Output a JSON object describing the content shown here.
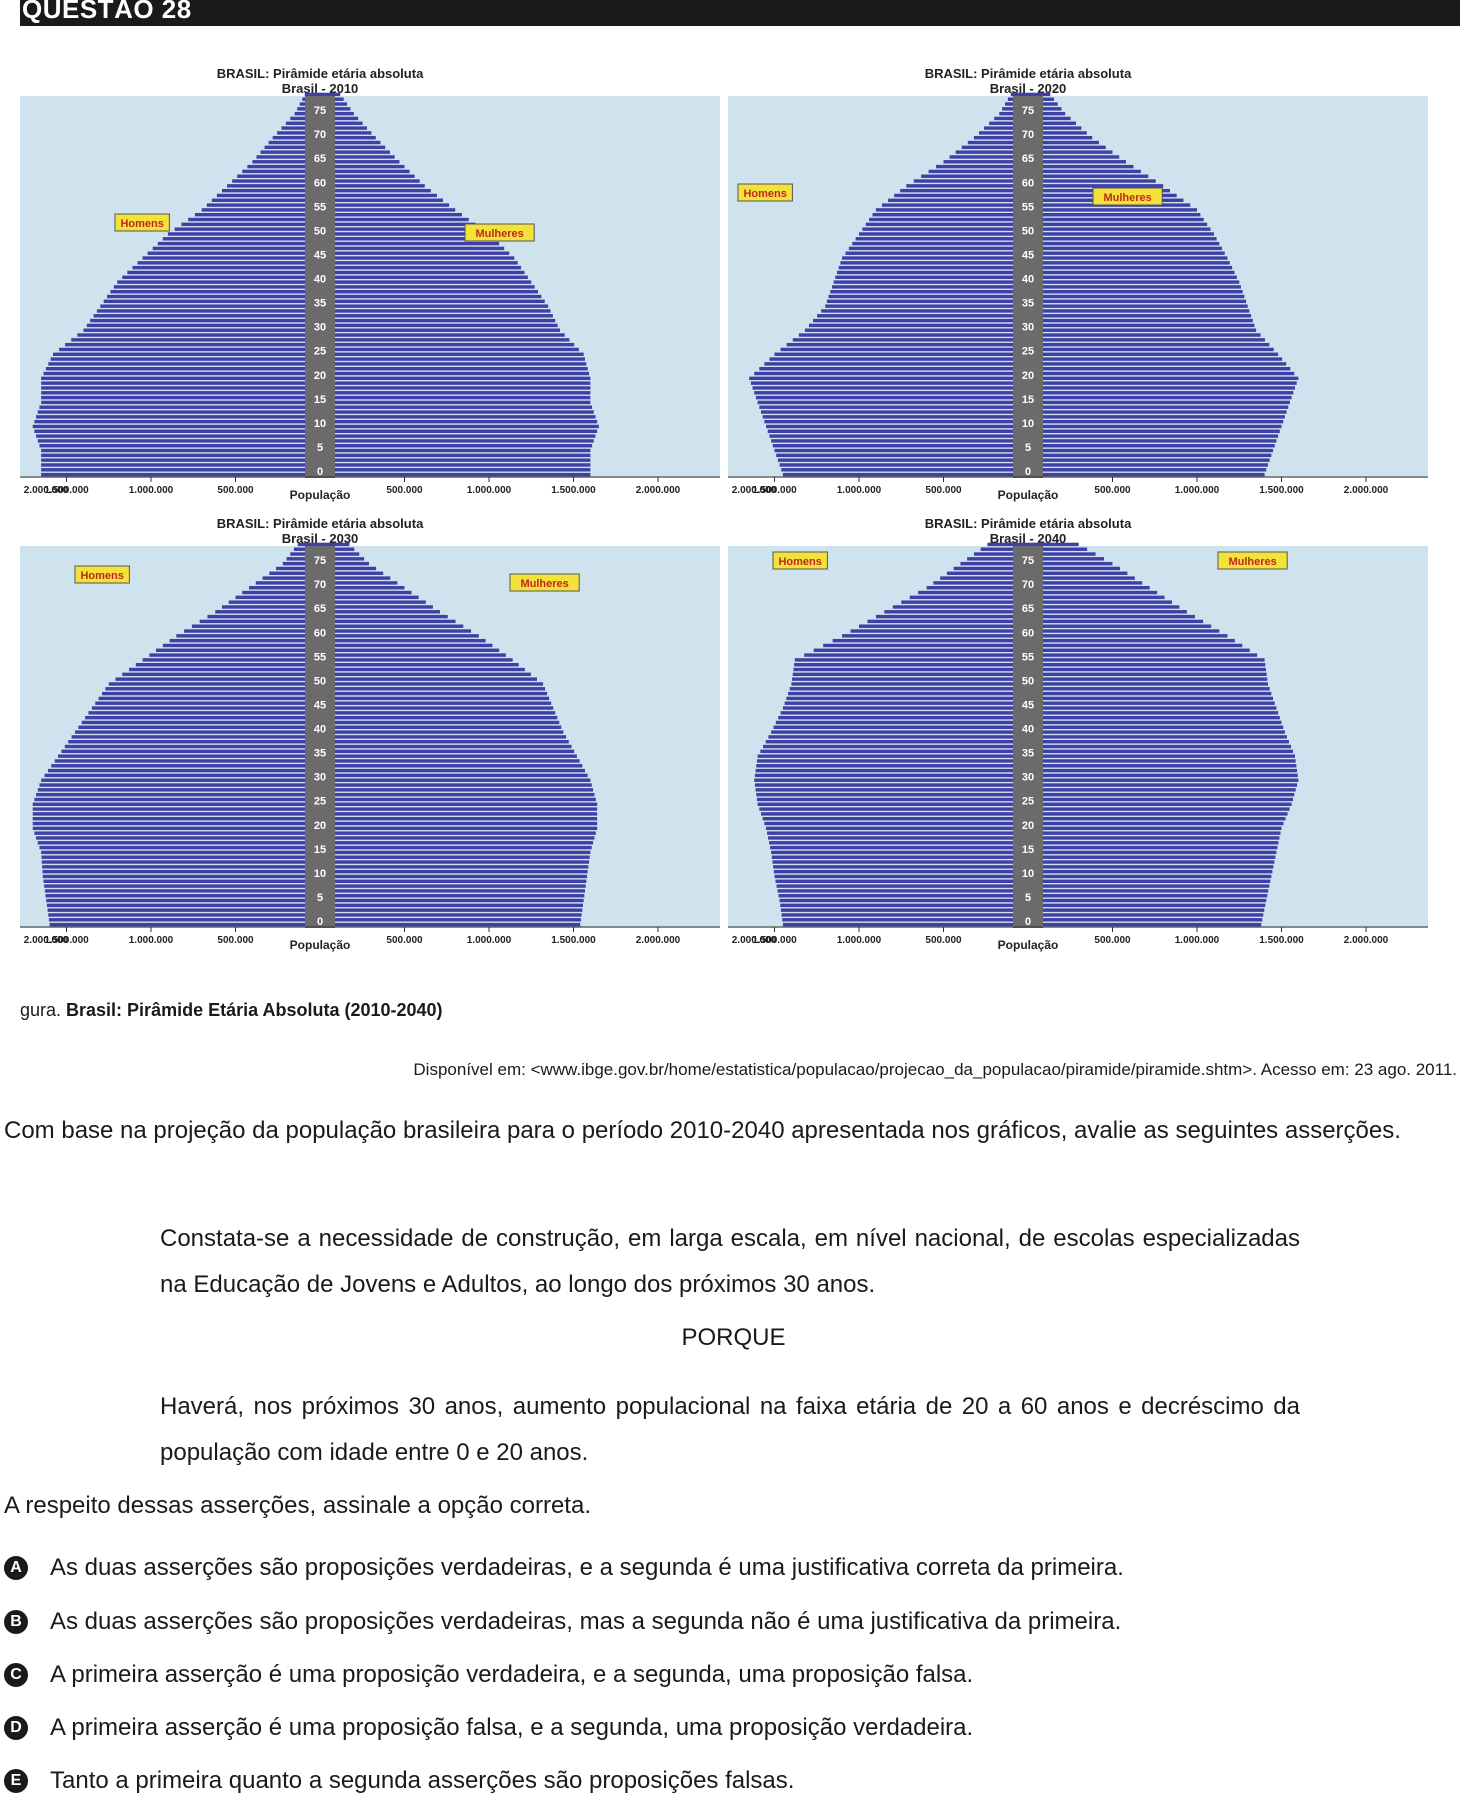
{
  "header": {
    "question": "QUESTÃO 28"
  },
  "chart_data": [
    {
      "type": "bar",
      "title": "BRASIL: Pirâmide etária absoluta",
      "subtitle": "Brasil - 2010",
      "xlabel": "População",
      "y_ticks": [
        "0",
        "5",
        "10",
        "15",
        "20",
        "25",
        "30",
        "35",
        "40",
        "45",
        "50",
        "55",
        "60",
        "65",
        "70",
        "75"
      ],
      "x_ticks": [
        "2.000.000",
        "1.500.000",
        "1.000.000",
        "500.000",
        "500.000",
        "1.000.000",
        "1.500.000",
        "2.000.000"
      ],
      "xlim": [
        -2000000,
        2000000
      ],
      "ylim": [
        0,
        80
      ],
      "legend": [
        "Homens",
        "Mulheres"
      ],
      "ages": [
        0,
        5,
        10,
        15,
        20,
        25,
        30,
        35,
        40,
        45,
        50,
        55,
        60,
        65,
        70,
        75
      ],
      "series": [
        {
          "name": "Homens",
          "values": [
            1650000,
            1650000,
            1700000,
            1650000,
            1650000,
            1580000,
            1400000,
            1300000,
            1200000,
            1050000,
            900000,
            700000,
            550000,
            400000,
            280000,
            150000
          ]
        },
        {
          "name": "Mulheres",
          "values": [
            1600000,
            1600000,
            1650000,
            1600000,
            1600000,
            1560000,
            1420000,
            1350000,
            1250000,
            1150000,
            1000000,
            800000,
            620000,
            470000,
            330000,
            200000
          ]
        }
      ]
    },
    {
      "type": "bar",
      "title": "BRASIL: Pirâmide etária absoluta",
      "subtitle": "Brasil - 2020",
      "xlabel": "População",
      "y_ticks": [
        "0",
        "5",
        "10",
        "15",
        "20",
        "25",
        "30",
        "35",
        "40",
        "45",
        "50",
        "55",
        "60",
        "65",
        "70",
        "75"
      ],
      "x_ticks": [
        "2.000.000",
        "1.500.000",
        "1.000.000",
        "500.000",
        "500.000",
        "1.000.000",
        "1.500.000",
        "2.000.000"
      ],
      "xlim": [
        -2000000,
        2000000
      ],
      "ylim": [
        0,
        80
      ],
      "legend": [
        "Homens",
        "Mulheres"
      ],
      "ages": [
        0,
        5,
        10,
        15,
        20,
        25,
        30,
        35,
        40,
        45,
        50,
        55,
        60,
        65,
        70,
        75
      ],
      "series": [
        {
          "name": "Homens",
          "values": [
            1450000,
            1500000,
            1550000,
            1600000,
            1650000,
            1500000,
            1320000,
            1200000,
            1150000,
            1100000,
            1000000,
            900000,
            720000,
            500000,
            320000,
            170000
          ]
        },
        {
          "name": "Mulheres",
          "values": [
            1400000,
            1450000,
            1500000,
            1550000,
            1600000,
            1480000,
            1350000,
            1300000,
            1250000,
            1180000,
            1100000,
            1000000,
            800000,
            580000,
            380000,
            220000
          ]
        }
      ]
    },
    {
      "type": "bar",
      "title": "BRASIL: Pirâmide etária absoluta",
      "subtitle": "Brasil - 2030",
      "xlabel": "População",
      "y_ticks": [
        "0",
        "5",
        "10",
        "15",
        "20",
        "25",
        "30",
        "35",
        "40",
        "45",
        "50",
        "55",
        "60",
        "65",
        "70",
        "75"
      ],
      "x_ticks": [
        "2.000.000",
        "1.500.000",
        "1.000.000",
        "500.000",
        "500.000",
        "1.000.000",
        "1.500.000",
        "2.000.000"
      ],
      "xlim": [
        -2000000,
        2000000
      ],
      "ylim": [
        0,
        80
      ],
      "legend": [
        "Homens",
        "Mulheres"
      ],
      "ages": [
        0,
        5,
        10,
        15,
        20,
        25,
        30,
        35,
        40,
        45,
        50,
        55,
        60,
        65,
        70,
        75
      ],
      "series": [
        {
          "name": "Homens",
          "values": [
            1600000,
            1620000,
            1640000,
            1650000,
            1700000,
            1700000,
            1650000,
            1550000,
            1450000,
            1350000,
            1250000,
            1050000,
            850000,
            620000,
            420000,
            220000
          ]
        },
        {
          "name": "Mulheres",
          "values": [
            1540000,
            1560000,
            1580000,
            1600000,
            1640000,
            1640000,
            1600000,
            1520000,
            1440000,
            1380000,
            1320000,
            1140000,
            940000,
            710000,
            500000,
            290000
          ]
        }
      ]
    },
    {
      "type": "bar",
      "title": "BRASIL: Pirâmide etária absoluta",
      "subtitle": "Brasil - 2040",
      "xlabel": "População",
      "y_ticks": [
        "0",
        "5",
        "10",
        "15",
        "20",
        "25",
        "30",
        "35",
        "40",
        "45",
        "50",
        "55",
        "60",
        "65",
        "70",
        "75"
      ],
      "x_ticks": [
        "2.000.000",
        "1.500.000",
        "1.000.000",
        "500.000",
        "500.000",
        "1.000.000",
        "1.500.000",
        "2.000.000"
      ],
      "xlim": [
        -2000000,
        2000000
      ],
      "ylim": [
        0,
        80
      ],
      "legend": [
        "Homens",
        "Mulheres"
      ],
      "ages": [
        0,
        5,
        10,
        15,
        20,
        25,
        30,
        35,
        40,
        45,
        50,
        55,
        60,
        65,
        70,
        75
      ],
      "series": [
        {
          "name": "Homens",
          "values": [
            1450000,
            1470000,
            1500000,
            1520000,
            1550000,
            1600000,
            1620000,
            1600000,
            1520000,
            1450000,
            1400000,
            1380000,
            1100000,
            850000,
            600000,
            400000
          ]
        },
        {
          "name": "Mulheres",
          "values": [
            1380000,
            1410000,
            1440000,
            1470000,
            1500000,
            1560000,
            1600000,
            1580000,
            1520000,
            1470000,
            1420000,
            1400000,
            1180000,
            940000,
            720000,
            500000
          ]
        }
      ]
    }
  ],
  "colors": {
    "bar": "#3f3fa6",
    "bar_dark": "#2a2a80",
    "panel_bg": "#cfe3ee",
    "axis_label_bg": "#6b6b6b",
    "legend_bg": "#f2e23a",
    "legend_text": "#c0281a"
  },
  "caption": {
    "prefix": "gura. ",
    "title": "Brasil: Pirâmide Etária Absoluta (2010-2040)"
  },
  "source": "Disponível em: <www.ibge.gov.br/home/estatistica/populacao/projecao_da_populacao/piramide/piramide.shtm>. Acesso em: 23 ago. 2011.",
  "intro": "Com base na projeção da população brasileira para o período 2010-2040 apresentada nos gráficos, avalie as seguintes asserções.",
  "assertion1": "Constata-se a necessidade de construção, em larga escala, em nível nacional, de escolas especializadas na Educação de Jovens e Adultos, ao longo dos próximos 30 anos.",
  "porque": "PORQUE",
  "assertion2": "Haverá, nos próximos 30 anos, aumento populacional na faixa etária de 20 a 60 anos e decréscimo da população com idade entre 0 e 20 anos.",
  "prompt": "A respeito dessas asserções, assinale a opção correta.",
  "options": [
    {
      "letter": "A",
      "text": "As duas asserções são proposições verdadeiras, e a segunda é uma justificativa correta da primeira."
    },
    {
      "letter": "B",
      "text": "As duas asserções são proposições verdadeiras, mas a segunda não é uma justificativa da primeira."
    },
    {
      "letter": "C",
      "text": "A primeira asserção é uma proposição verdadeira, e a segunda, uma proposição falsa."
    },
    {
      "letter": "D",
      "text": "A primeira asserção é uma proposição falsa, e a segunda, uma proposição verdadeira."
    },
    {
      "letter": "E",
      "text": "Tanto a primeira quanto a segunda asserções são proposições falsas."
    }
  ]
}
